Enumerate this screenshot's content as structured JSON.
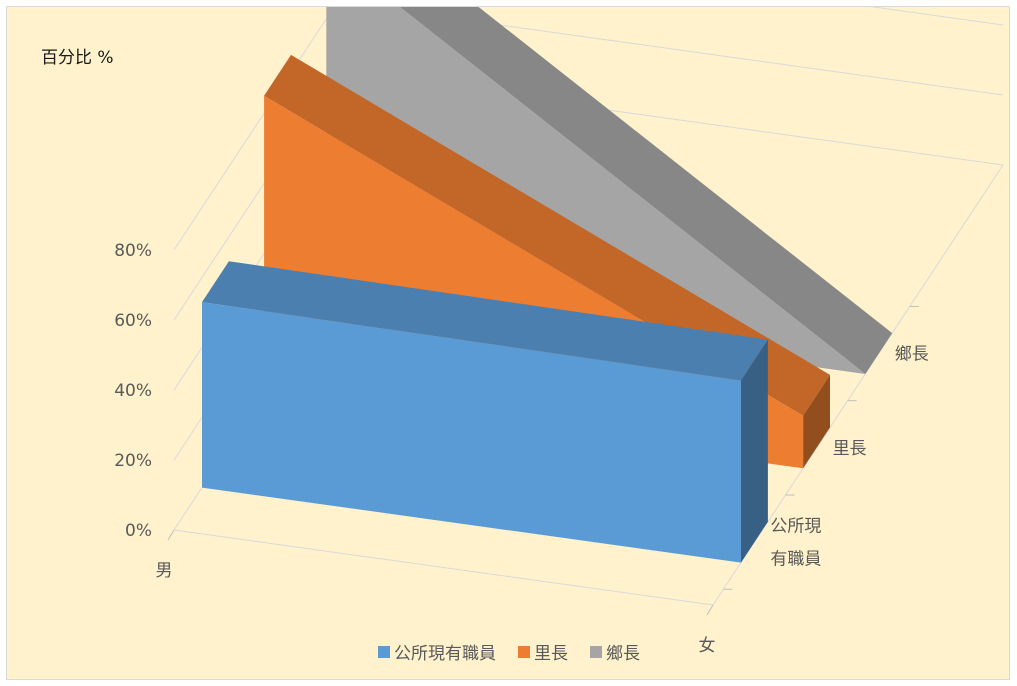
{
  "chart_data": {
    "type": "bar",
    "subtype": "3d-area",
    "unit_label": "百分比 %",
    "categories": [
      "男",
      "女"
    ],
    "ylim": [
      0,
      0.9
    ],
    "ytick_values": [
      0,
      0.2,
      0.4,
      0.6,
      0.8
    ],
    "ytick_labels": [
      "0%",
      "20%",
      "40%",
      "60%",
      "80%"
    ],
    "series": [
      {
        "name": "公所現有職員",
        "depth_label_lines": [
          "公所現",
          "有職員"
        ],
        "values": [
          0.53,
          0.52
        ],
        "color": "#5b9bd5"
      },
      {
        "name": "里長",
        "depth_label_lines": [
          "里長"
        ],
        "values": [
          0.85,
          0.15
        ],
        "color": "#ed7d31"
      },
      {
        "name": "鄉長",
        "depth_label_lines": [
          "鄉長"
        ],
        "values": [
          1.0,
          0.0
        ],
        "color": "#a5a5a5"
      }
    ],
    "grid": true,
    "legend_position": "bottom"
  }
}
